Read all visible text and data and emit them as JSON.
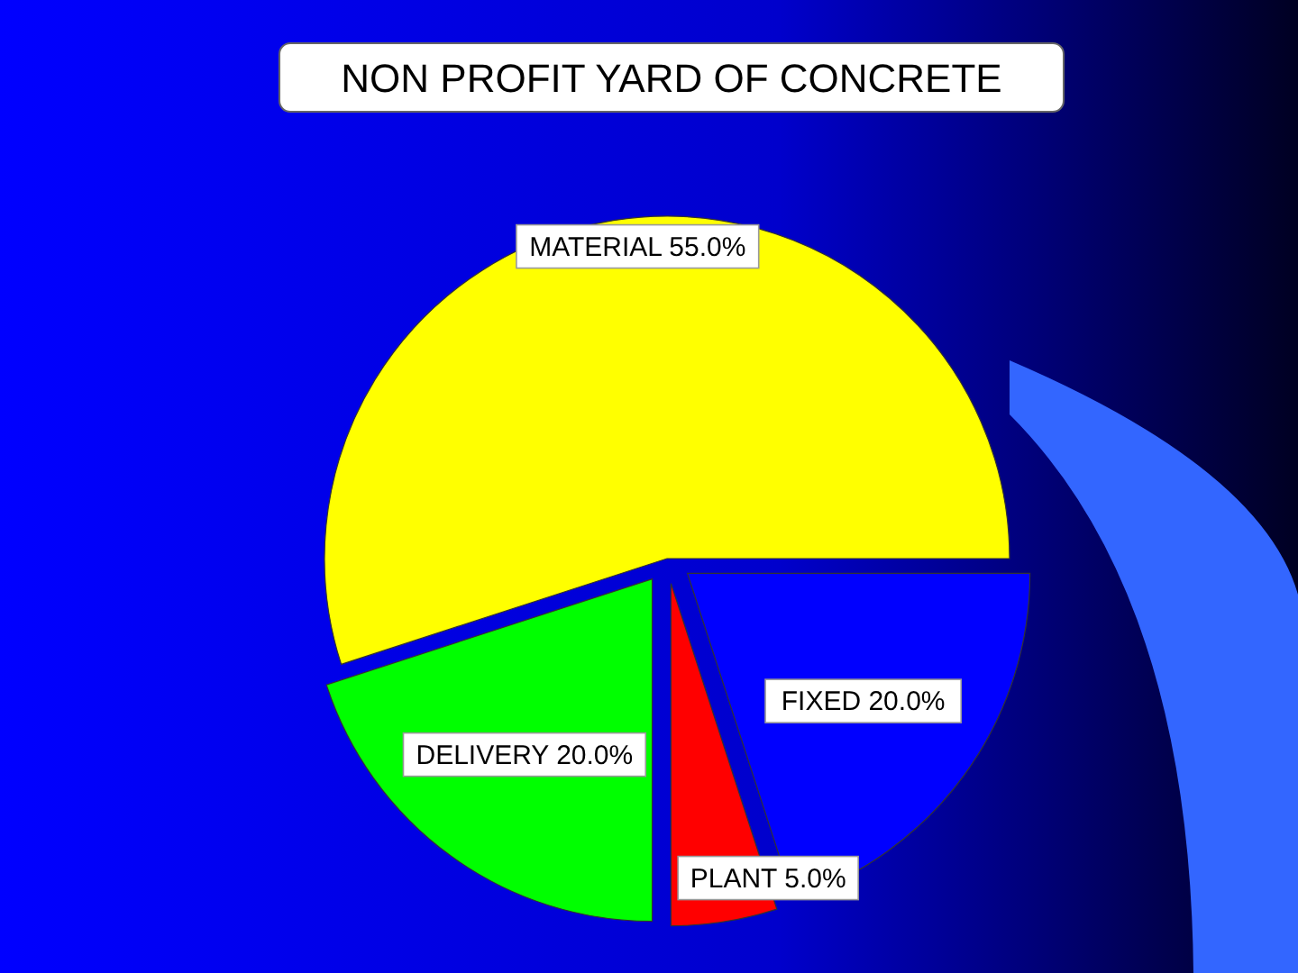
{
  "chart_data": {
    "type": "pie",
    "title": "NON PROFIT YARD OF CONCRETE",
    "categories": [
      "MATERIAL",
      "FIXED",
      "PLANT",
      "DELIVERY"
    ],
    "values": [
      55,
      20,
      5,
      20
    ],
    "colors": [
      "#ffff00",
      "#0000ff",
      "#ff0000",
      "#00ff00"
    ],
    "value_labels": [
      "55.0%",
      "20.0%",
      "5.0%",
      "20.0%"
    ]
  }
}
